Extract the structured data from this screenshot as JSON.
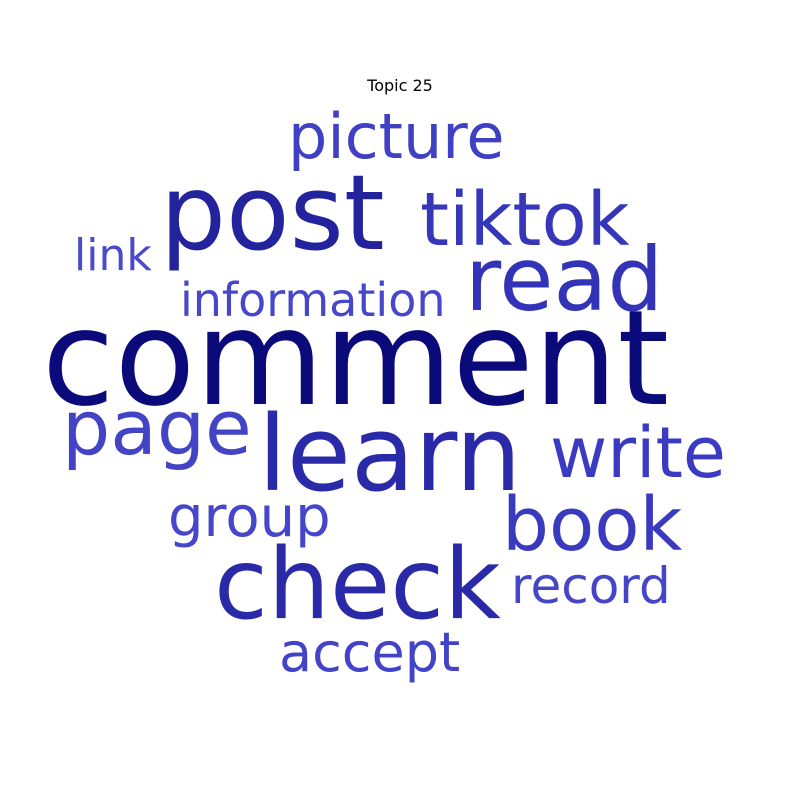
{
  "title": "Topic 25",
  "words": [
    {
      "text": "comment",
      "color": "#0a0a7a"
    },
    {
      "text": "post",
      "color": "#23239e"
    },
    {
      "text": "learn",
      "color": "#2a2aa8"
    },
    {
      "text": "check",
      "color": "#2a2aa8"
    },
    {
      "text": "read",
      "color": "#3333b8"
    },
    {
      "text": "tiktok",
      "color": "#3636bb"
    },
    {
      "text": "book",
      "color": "#3a3abf"
    },
    {
      "text": "write",
      "color": "#3a3ac2"
    },
    {
      "text": "page",
      "color": "#4343c6"
    },
    {
      "text": "picture",
      "color": "#4040c4"
    },
    {
      "text": "group",
      "color": "#4646ca"
    },
    {
      "text": "accept",
      "color": "#4343c8"
    },
    {
      "text": "record",
      "color": "#4545c8"
    },
    {
      "text": "information",
      "color": "#4747cb"
    },
    {
      "text": "link",
      "color": "#4a4acc"
    }
  ]
}
